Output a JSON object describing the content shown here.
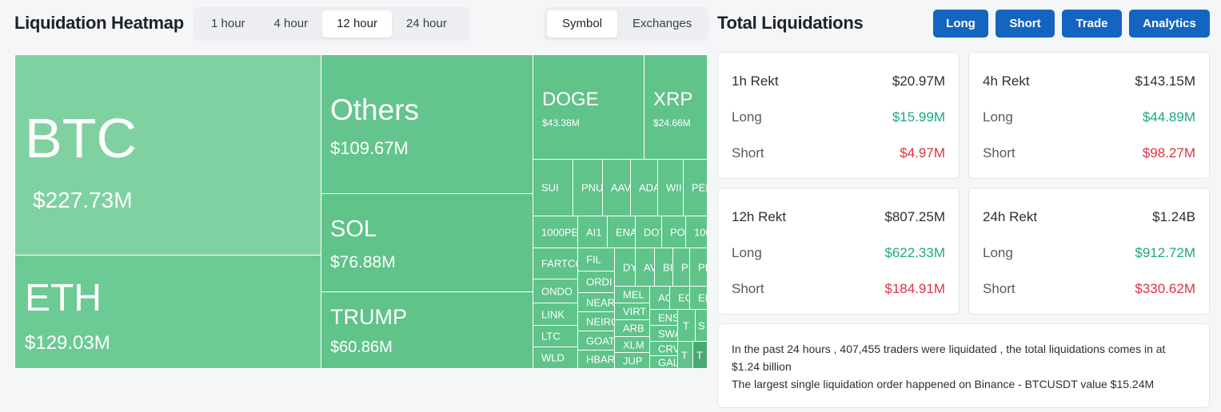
{
  "heatmap_title": "Liquidation Heatmap",
  "time_tabs": [
    {
      "label": "1 hour",
      "active": false
    },
    {
      "label": "4 hour",
      "active": false
    },
    {
      "label": "12 hour",
      "active": true
    },
    {
      "label": "24 hour",
      "active": false
    }
  ],
  "mode_tabs": [
    {
      "label": "Symbol",
      "active": true
    },
    {
      "label": "Exchanges",
      "active": false
    }
  ],
  "tiles": {
    "btc": {
      "symbol": "BTC",
      "value": "$227.73M"
    },
    "eth": {
      "symbol": "ETH",
      "value": "$129.03M"
    },
    "others": {
      "symbol": "Others",
      "value": "$109.67M"
    },
    "sol": {
      "symbol": "SOL",
      "value": "$76.88M"
    },
    "trump": {
      "symbol": "TRUMP",
      "value": "$60.86M"
    },
    "doge": {
      "symbol": "DOGE",
      "value": "$43.38M"
    },
    "xrp": {
      "symbol": "XRP",
      "value": "$24.66M"
    },
    "small": [
      "SUI",
      "PNU",
      "AAV",
      "ADA",
      "WII",
      "PEF",
      "1000PE",
      "AI1",
      "ENA",
      "DOT",
      "PO",
      "100",
      "FARTCO",
      "FIL",
      "DY",
      "AV",
      "BI",
      "PI",
      "PI",
      "ORDI",
      "ONDO",
      "NEAR",
      "MEL",
      "AC",
      "EC",
      "EI",
      "VIRT",
      "LINK",
      "NEIRO",
      "ENS",
      "S",
      "ARB",
      "SWA",
      "T",
      "LTC",
      "GOAT",
      "XLM",
      "CRV",
      "WLD",
      "HBAR",
      "JUP",
      "GALA",
      "T",
      "T"
    ]
  },
  "total_title": "Total Liquidations",
  "buttons": {
    "long": "Long",
    "short": "Short",
    "trade": "Trade",
    "analytics": "Analytics"
  },
  "cards": {
    "h1": {
      "label": "1h Rekt",
      "total": "$20.97M",
      "long_label": "Long",
      "long": "$15.99M",
      "short_label": "Short",
      "short": "$4.97M"
    },
    "h4": {
      "label": "4h Rekt",
      "total": "$143.15M",
      "long_label": "Long",
      "long": "$44.89M",
      "short_label": "Short",
      "short": "$98.27M"
    },
    "h12": {
      "label": "12h Rekt",
      "total": "$807.25M",
      "long_label": "Long",
      "long": "$622.33M",
      "short_label": "Short",
      "short": "$184.91M"
    },
    "h24": {
      "label": "24h Rekt",
      "total": "$1.24B",
      "long_label": "Long",
      "long": "$912.72M",
      "short_label": "Short",
      "short": "$330.62M"
    }
  },
  "summary": {
    "line1": "In the past 24 hours , 407,455 traders were liquidated , the total liquidations comes in at $1.24 billion",
    "line2": "The largest single liquidation order happened on Binance - BTCUSDT value $15.24M"
  },
  "colors": {
    "green_tile": "#5fc38a",
    "btc_tile": "#80d1a1",
    "accent_button": "#1565c0",
    "long": "#1aa884",
    "short": "#e0303f"
  }
}
